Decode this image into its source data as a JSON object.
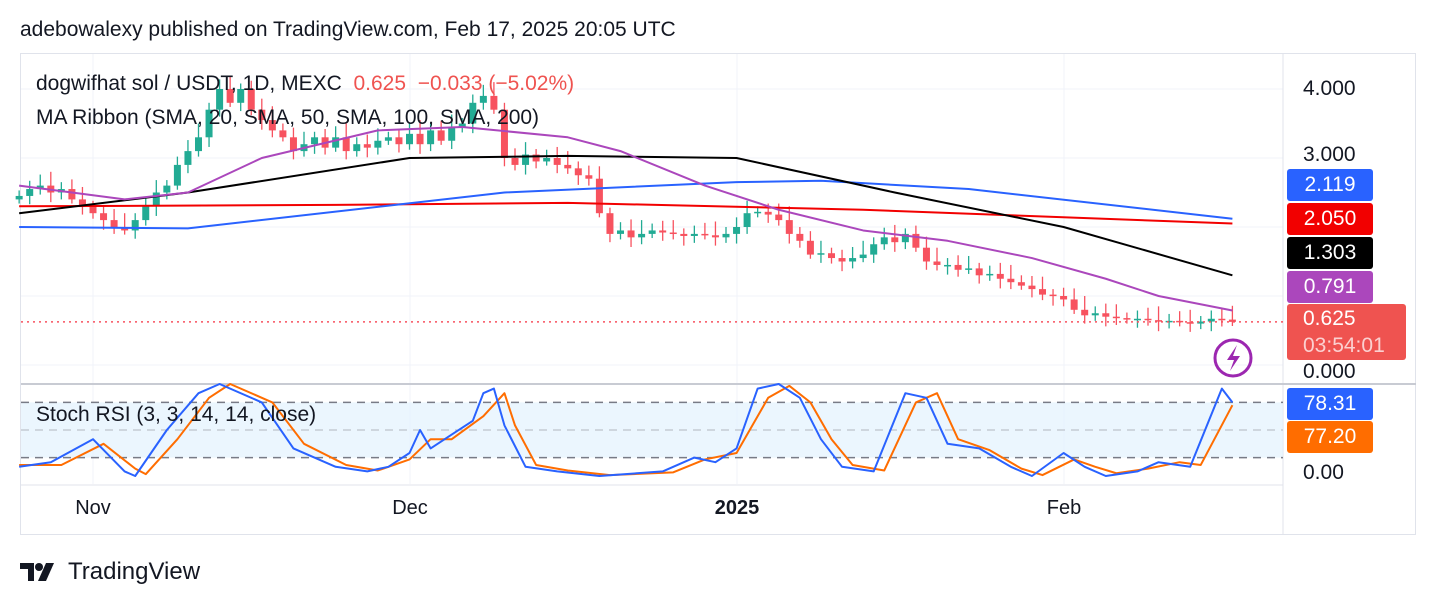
{
  "header": {
    "published": "adebowalexy published on TradingView.com, Feb 17, 2025 20:05 UTC"
  },
  "legend": {
    "symbol": "dogwifhat sol / USDT, 1D, MEXC",
    "price": "0.625",
    "change": "−0.033 (−5.02%)",
    "indicator": "MA Ribbon (SMA, 20, SMA, 50, SMA, 100, SMA, 200)",
    "rsi": "Stoch RSI (3, 3, 14, 14, close)"
  },
  "price_axis": {
    "labels": [
      "4.000",
      "3.000",
      "0.000"
    ],
    "rsi_label": "0.00"
  },
  "badges": {
    "sma100": "2.119",
    "sma200": "2.050",
    "sma50": "1.303",
    "sma20": "0.791",
    "last": "0.625",
    "countdown": "03:54:01",
    "k": "78.31",
    "d": "77.20"
  },
  "colors": {
    "up": "#22ab94",
    "down": "#f7525f",
    "sma20": "#ab47bc",
    "sma50": "#000000",
    "sma100": "#2962ff",
    "sma200": "#f20000",
    "k": "#2962ff",
    "d": "#ff6d00"
  },
  "time_axis": [
    "Nov",
    "Dec",
    "2025",
    "Feb"
  ],
  "footer": {
    "brand": "TradingView"
  },
  "chart_data": {
    "type": "candlestick",
    "title": "dogwifhat sol / USDT, 1D, MEXC",
    "start_date": "2024-10-25",
    "ylim": [
      0,
      4.6
    ],
    "closes": [
      2.45,
      2.55,
      2.6,
      2.5,
      2.55,
      2.4,
      2.3,
      2.2,
      2.1,
      2.0,
      1.95,
      2.1,
      2.3,
      2.5,
      2.6,
      2.9,
      3.1,
      3.3,
      3.7,
      4.0,
      3.8,
      4.0,
      3.7,
      3.55,
      3.4,
      3.3,
      3.1,
      3.2,
      3.3,
      3.15,
      3.3,
      3.1,
      3.2,
      3.15,
      3.25,
      3.3,
      3.2,
      3.35,
      3.2,
      3.4,
      3.25,
      3.45,
      3.5,
      3.8,
      3.9,
      3.7,
      3.0,
      2.9,
      3.05,
      2.95,
      3.0,
      2.9,
      2.85,
      2.75,
      2.7,
      2.2,
      1.9,
      1.95,
      1.85,
      1.9,
      1.95,
      1.92,
      1.9,
      1.87,
      1.9,
      1.88,
      1.85,
      1.9,
      2.0,
      2.2,
      2.22,
      2.18,
      2.1,
      1.9,
      1.8,
      1.6,
      1.62,
      1.55,
      1.5,
      1.55,
      1.6,
      1.75,
      1.85,
      1.78,
      1.9,
      1.7,
      1.5,
      1.45,
      1.45,
      1.38,
      1.4,
      1.3,
      1.32,
      1.25,
      1.2,
      1.15,
      1.1,
      1.02,
      1.0,
      0.95,
      0.8,
      0.72,
      0.75,
      0.7,
      0.68,
      0.66,
      0.67,
      0.65,
      0.63,
      0.64,
      0.62,
      0.6,
      0.63,
      0.67,
      0.658,
      0.625
    ],
    "ma": {
      "sma20": [
        [
          0,
          2.6
        ],
        [
          10,
          2.4
        ],
        [
          16,
          2.5
        ],
        [
          23,
          3.0
        ],
        [
          34,
          3.4
        ],
        [
          42,
          3.45
        ],
        [
          52,
          3.3
        ],
        [
          57,
          3.1
        ],
        [
          65,
          2.6
        ],
        [
          72,
          2.25
        ],
        [
          80,
          1.95
        ],
        [
          88,
          1.8
        ],
        [
          96,
          1.55
        ],
        [
          103,
          1.25
        ],
        [
          108,
          1.0
        ],
        [
          115,
          0.79
        ]
      ],
      "sma50": [
        [
          0,
          2.2
        ],
        [
          16,
          2.5
        ],
        [
          37,
          3.0
        ],
        [
          52,
          3.03
        ],
        [
          68,
          3.0
        ],
        [
          83,
          2.5
        ],
        [
          99,
          2.0
        ],
        [
          115,
          1.3
        ]
      ],
      "sma100": [
        [
          0,
          2.0
        ],
        [
          16,
          1.98
        ],
        [
          46,
          2.5
        ],
        [
          68,
          2.65
        ],
        [
          76,
          2.67
        ],
        [
          90,
          2.55
        ],
        [
          115,
          2.12
        ]
      ],
      "sma200": [
        [
          0,
          2.3
        ],
        [
          30,
          2.32
        ],
        [
          52,
          2.35
        ],
        [
          80,
          2.25
        ],
        [
          115,
          2.05
        ]
      ]
    },
    "stoch_rsi": {
      "ylim": [
        0,
        100
      ],
      "bands": [
        20,
        50,
        80
      ],
      "k": [
        [
          0,
          10
        ],
        [
          3,
          15
        ],
        [
          7,
          40
        ],
        [
          10,
          5
        ],
        [
          11,
          0
        ],
        [
          14,
          50
        ],
        [
          17,
          90
        ],
        [
          19,
          100
        ],
        [
          23,
          80
        ],
        [
          26,
          30
        ],
        [
          30,
          10
        ],
        [
          33,
          5
        ],
        [
          35,
          10
        ],
        [
          37,
          25
        ],
        [
          38,
          50
        ],
        [
          39,
          30
        ],
        [
          41,
          45
        ],
        [
          43,
          60
        ],
        [
          44,
          90
        ],
        [
          45,
          95
        ],
        [
          46,
          55
        ],
        [
          48,
          10
        ],
        [
          51,
          5
        ],
        [
          55,
          0
        ],
        [
          61,
          5
        ],
        [
          64,
          20
        ],
        [
          66,
          15
        ],
        [
          68,
          30
        ],
        [
          70,
          95
        ],
        [
          72,
          100
        ],
        [
          74,
          85
        ],
        [
          76,
          40
        ],
        [
          78,
          10
        ],
        [
          81,
          5
        ],
        [
          84,
          90
        ],
        [
          86,
          85
        ],
        [
          88,
          35
        ],
        [
          91,
          30
        ],
        [
          94,
          10
        ],
        [
          96,
          0
        ],
        [
          99,
          25
        ],
        [
          101,
          10
        ],
        [
          103,
          0
        ],
        [
          106,
          5
        ],
        [
          108,
          15
        ],
        [
          111,
          10
        ],
        [
          114,
          95
        ],
        [
          115,
          80
        ]
      ],
      "d": [
        [
          0,
          12
        ],
        [
          4,
          12
        ],
        [
          8,
          35
        ],
        [
          11,
          8
        ],
        [
          12,
          2
        ],
        [
          15,
          40
        ],
        [
          18,
          85
        ],
        [
          20,
          100
        ],
        [
          24,
          80
        ],
        [
          27,
          35
        ],
        [
          31,
          12
        ],
        [
          34,
          6
        ],
        [
          37,
          18
        ],
        [
          39,
          40
        ],
        [
          41,
          40
        ],
        [
          44,
          65
        ],
        [
          46,
          90
        ],
        [
          47,
          55
        ],
        [
          49,
          12
        ],
        [
          52,
          6
        ],
        [
          56,
          1
        ],
        [
          62,
          4
        ],
        [
          65,
          18
        ],
        [
          68,
          25
        ],
        [
          71,
          85
        ],
        [
          73,
          98
        ],
        [
          75,
          80
        ],
        [
          77,
          40
        ],
        [
          79,
          12
        ],
        [
          82,
          6
        ],
        [
          85,
          80
        ],
        [
          87,
          90
        ],
        [
          89,
          40
        ],
        [
          92,
          28
        ],
        [
          95,
          8
        ],
        [
          97,
          1
        ],
        [
          100,
          18
        ],
        [
          102,
          10
        ],
        [
          104,
          3
        ],
        [
          107,
          8
        ],
        [
          110,
          15
        ],
        [
          112,
          12
        ],
        [
          115,
          77
        ]
      ]
    }
  }
}
